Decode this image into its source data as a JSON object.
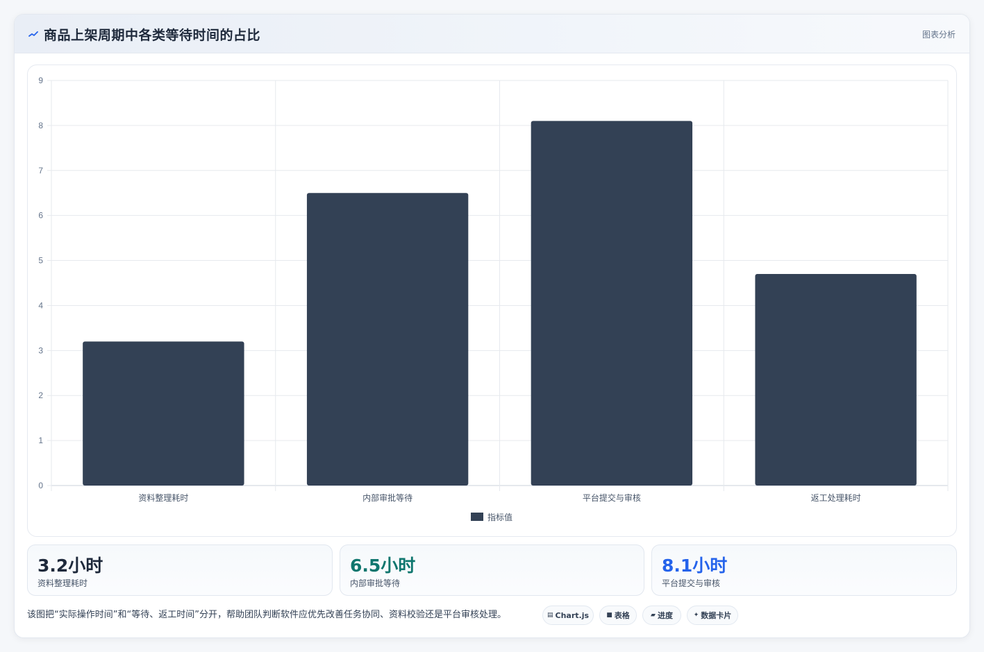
{
  "header": {
    "title": "商品上架周期中各类等待时间的占比",
    "tag": "图表分析"
  },
  "chart_data": {
    "type": "bar",
    "categories": [
      "资料整理耗时",
      "内部审批等待",
      "平台提交与审核",
      "返工处理耗时"
    ],
    "series": [
      {
        "name": "指标值",
        "values": [
          3.2,
          6.5,
          8.1,
          4.7
        ]
      }
    ],
    "ylim": [
      0,
      9
    ],
    "yticks": [
      0,
      1,
      2,
      3,
      4,
      5,
      6,
      7,
      8,
      9
    ],
    "grid": true,
    "legend": "bottom",
    "bar_color": "#334155"
  },
  "stats": [
    {
      "value": "3.2小时",
      "label": "资料整理耗时",
      "color": "#1e293b"
    },
    {
      "value": "6.5小时",
      "label": "内部审批等待",
      "color": "#0f766e"
    },
    {
      "value": "8.1小时",
      "label": "平台提交与审核",
      "color": "#2563eb"
    }
  ],
  "footer": {
    "note": "该图把“实际操作时间”和“等待、返工时间”分开，帮助团队判断软件应优先改善任务协同、资料校验还是平台审核处理。",
    "pills": [
      {
        "icon": "chart-icon",
        "label": "Chart.js"
      },
      {
        "icon": "table-icon",
        "label": "表格"
      },
      {
        "icon": "progress-icon",
        "label": "进度"
      },
      {
        "icon": "sparkle-icon",
        "label": "数据卡片"
      }
    ]
  }
}
